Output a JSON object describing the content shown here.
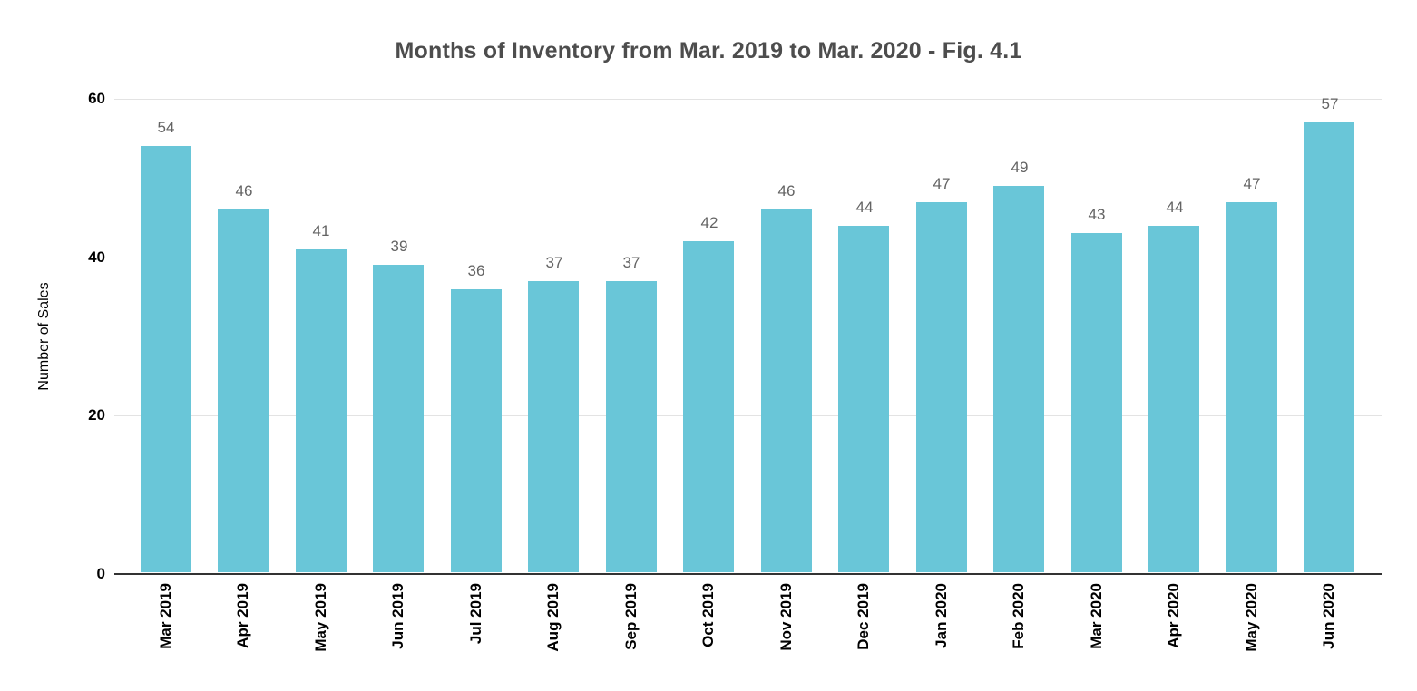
{
  "chart_data": {
    "type": "bar",
    "title": "Months of Inventory from Mar. 2019 to Mar. 2020 - Fig. 4.1",
    "xlabel": "",
    "ylabel": "Number of Sales",
    "categories": [
      "Mar 2019",
      "Apr 2019",
      "May 2019",
      "Jun 2019",
      "Jul 2019",
      "Aug 2019",
      "Sep 2019",
      "Oct 2019",
      "Nov 2019",
      "Dec 2019",
      "Jan 2020",
      "Feb 2020",
      "Mar 2020",
      "Apr 2020",
      "May 2020",
      "Jun 2020"
    ],
    "values": [
      54,
      46,
      41,
      39,
      36,
      37,
      37,
      42,
      46,
      44,
      47,
      49,
      43,
      44,
      47,
      57
    ],
    "ylim": [
      0,
      60
    ],
    "yticks": [
      0,
      20,
      40,
      60
    ],
    "grid": true,
    "legend_position": "none",
    "data_labels": true,
    "colors": {
      "bar": "#69c6d8",
      "gridline": "#e3e3e3",
      "baseline": "#333333",
      "title": "#4d4d4d",
      "data_label": "#636363",
      "tick_label": "#000000"
    }
  }
}
